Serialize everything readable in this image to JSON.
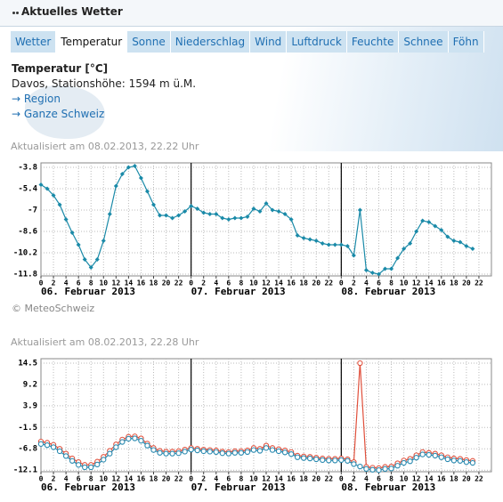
{
  "header": {
    "title": "Aktuelles Wetter"
  },
  "tabs": [
    "Wetter",
    "Temperatur",
    "Sonne",
    "Niederschlag",
    "Wind",
    "Luftdruck",
    "Feuchte",
    "Schnee",
    "Föhn"
  ],
  "active_tab": 1,
  "info": {
    "title": "Temperatur [°C]",
    "station": "Davos, Stationshöhe: 1594 m ü.M.",
    "links": [
      "Region",
      "Ganze Schweiz"
    ]
  },
  "credit": "© MeteoSchweiz",
  "chart_data": [
    {
      "type": "line",
      "subtitle": "Aktualisiert am 08.02.2013, 22.22 Uhr",
      "marker": "diamond",
      "grid": true,
      "x": [
        0,
        1,
        2,
        3,
        4,
        5,
        6,
        7,
        8,
        9,
        10,
        11,
        12,
        13,
        14,
        15,
        16,
        17,
        18,
        19,
        20,
        21,
        22,
        23,
        24,
        25,
        26,
        27,
        28,
        29,
        30,
        31,
        32,
        33,
        34,
        35,
        36,
        37,
        38,
        39,
        40,
        41,
        42,
        43,
        44,
        45,
        46,
        47,
        48,
        49,
        50,
        51,
        52,
        53,
        54,
        55,
        56,
        57,
        58,
        59,
        60,
        61,
        62,
        63,
        64,
        65,
        66,
        67,
        68,
        69
      ],
      "color": "#1a8aa8",
      "values": [
        -5.1,
        -5.4,
        -5.9,
        -6.6,
        -7.7,
        -8.7,
        -9.6,
        -10.7,
        -11.3,
        -10.7,
        -9.3,
        -7.3,
        -5.2,
        -4.3,
        -3.8,
        -3.7,
        -4.6,
        -5.6,
        -6.6,
        -7.4,
        -7.4,
        -7.6,
        -7.4,
        -7.1,
        -6.7,
        -6.9,
        -7.2,
        -7.3,
        -7.3,
        -7.6,
        -7.7,
        -7.6,
        -7.6,
        -7.5,
        -6.9,
        -7.1,
        -6.5,
        -7.0,
        -7.1,
        -7.3,
        -7.7,
        -8.9,
        -9.1,
        -9.2,
        -9.3,
        -9.5,
        -9.6,
        -9.6,
        -9.6,
        -9.7,
        -10.4,
        -7.0,
        -11.5,
        -11.7,
        -11.8,
        -11.4,
        -11.4,
        -10.6,
        -9.9,
        -9.5,
        -8.6,
        -7.8,
        -7.9,
        -8.2,
        -8.5,
        -9.0,
        -9.3,
        -9.4,
        -9.7,
        -9.9
      ],
      "xlim": [
        0,
        72
      ],
      "xticks": [
        0,
        2,
        4,
        6,
        8,
        10,
        12,
        14,
        16,
        18,
        20,
        22,
        {
          "value": 24,
          "label": "0"
        },
        {
          "value": 26,
          "label": "2"
        },
        {
          "value": 28,
          "label": "4"
        },
        {
          "value": 30,
          "label": "6"
        },
        {
          "value": 32,
          "label": "8"
        },
        {
          "value": 34,
          "label": "10"
        },
        {
          "value": 36,
          "label": "12"
        },
        {
          "value": 38,
          "label": "14"
        },
        {
          "value": 40,
          "label": "16"
        },
        {
          "value": 42,
          "label": "18"
        },
        {
          "value": 44,
          "label": "20"
        },
        {
          "value": 46,
          "label": "22"
        },
        {
          "value": 48,
          "label": "0"
        },
        {
          "value": 50,
          "label": "2"
        },
        {
          "value": 52,
          "label": "4"
        },
        {
          "value": 54,
          "label": "6"
        },
        {
          "value": 56,
          "label": "8"
        },
        {
          "value": 58,
          "label": "10"
        },
        {
          "value": 60,
          "label": "12"
        },
        {
          "value": 62,
          "label": "14"
        },
        {
          "value": 64,
          "label": "16"
        },
        {
          "value": 66,
          "label": "18"
        },
        {
          "value": 68,
          "label": "20"
        },
        {
          "value": 70,
          "label": "22"
        }
      ],
      "day_labels": [
        {
          "value": 0,
          "label": "06. Februar 2013"
        },
        {
          "value": 24,
          "label": "07. Februar 2013"
        },
        {
          "value": 48,
          "label": "08. Februar 2013"
        }
      ],
      "ylim": [
        -11.93,
        -3.47
      ],
      "yticks": [
        -3.8,
        -5.4,
        -7.0,
        -8.6,
        -10.2,
        -11.8
      ]
    },
    {
      "type": "line",
      "subtitle": "Aktualisiert am 08.02.2013, 22.28 Uhr",
      "marker": "circle",
      "grid": true,
      "x": [
        0,
        1,
        2,
        3,
        4,
        5,
        6,
        7,
        8,
        9,
        10,
        11,
        12,
        13,
        14,
        15,
        16,
        17,
        18,
        19,
        20,
        21,
        22,
        23,
        24,
        25,
        26,
        27,
        28,
        29,
        30,
        31,
        32,
        33,
        34,
        35,
        36,
        37,
        38,
        39,
        40,
        41,
        42,
        43,
        44,
        45,
        46,
        47,
        48,
        49,
        50,
        51,
        52,
        53,
        54,
        55,
        56,
        57,
        58,
        59,
        60,
        61,
        62,
        63,
        64,
        65,
        66,
        67,
        68,
        69
      ],
      "series": [
        {
          "color": "#e0503c",
          "values": [
            -5.0,
            -5.3,
            -5.8,
            -6.8,
            -8.0,
            -9.2,
            -10.1,
            -10.8,
            -10.8,
            -10.0,
            -8.8,
            -7.3,
            -5.7,
            -4.5,
            -3.8,
            -3.7,
            -4.2,
            -5.5,
            -6.6,
            -7.3,
            -7.5,
            -7.5,
            -7.4,
            -7.0,
            -6.6,
            -6.8,
            -7.0,
            -7.1,
            -7.2,
            -7.5,
            -7.6,
            -7.4,
            -7.4,
            -7.2,
            -6.6,
            -6.8,
            -6.0,
            -6.6,
            -6.9,
            -7.2,
            -7.6,
            -8.5,
            -8.7,
            -8.8,
            -9.0,
            -9.2,
            -9.3,
            -9.3,
            -9.2,
            -9.4,
            -10.1,
            14.5,
            -11.3,
            -11.5,
            -11.6,
            -11.3,
            -11.2,
            -10.4,
            -9.7,
            -9.3,
            -8.4,
            -7.6,
            -7.8,
            -8.0,
            -8.4,
            -8.9,
            -9.2,
            -9.3,
            -9.6,
            -9.8
          ]
        },
        {
          "color": "#2a8ab0",
          "values": [
            -5.6,
            -5.9,
            -6.4,
            -7.4,
            -8.6,
            -9.8,
            -10.8,
            -11.4,
            -11.4,
            -10.7,
            -9.5,
            -8.0,
            -6.4,
            -5.1,
            -4.3,
            -4.2,
            -4.8,
            -6.0,
            -7.1,
            -7.8,
            -8.0,
            -8.0,
            -7.9,
            -7.5,
            -7.0,
            -7.2,
            -7.4,
            -7.5,
            -7.6,
            -7.9,
            -8.0,
            -7.8,
            -7.8,
            -7.6,
            -7.1,
            -7.3,
            -6.6,
            -7.1,
            -7.4,
            -7.7,
            -8.1,
            -8.9,
            -9.1,
            -9.2,
            -9.4,
            -9.6,
            -9.7,
            -9.7,
            -9.6,
            -9.8,
            -10.6,
            -11.2,
            -11.8,
            -12.0,
            -12.1,
            -11.8,
            -11.7,
            -11.0,
            -10.3,
            -9.9,
            -9.0,
            -8.2,
            -8.3,
            -8.5,
            -8.9,
            -9.4,
            -9.7,
            -9.8,
            -10.1,
            -10.3
          ]
        }
      ],
      "xlim": [
        0,
        72
      ],
      "xticks": [
        0,
        2,
        4,
        6,
        8,
        10,
        12,
        14,
        16,
        18,
        20,
        22,
        {
          "value": 24,
          "label": "0"
        },
        {
          "value": 26,
          "label": "2"
        },
        {
          "value": 28,
          "label": "4"
        },
        {
          "value": 30,
          "label": "6"
        },
        {
          "value": 32,
          "label": "8"
        },
        {
          "value": 34,
          "label": "10"
        },
        {
          "value": 36,
          "label": "12"
        },
        {
          "value": 38,
          "label": "14"
        },
        {
          "value": 40,
          "label": "16"
        },
        {
          "value": 42,
          "label": "18"
        },
        {
          "value": 44,
          "label": "20"
        },
        {
          "value": 46,
          "label": "22"
        },
        {
          "value": 48,
          "label": "0"
        },
        {
          "value": 50,
          "label": "2"
        },
        {
          "value": 52,
          "label": "4"
        },
        {
          "value": 54,
          "label": "6"
        },
        {
          "value": 56,
          "label": "8"
        },
        {
          "value": 58,
          "label": "10"
        },
        {
          "value": 60,
          "label": "12"
        },
        {
          "value": 62,
          "label": "14"
        },
        {
          "value": 64,
          "label": "16"
        },
        {
          "value": 66,
          "label": "18"
        },
        {
          "value": 68,
          "label": "20"
        },
        {
          "value": 70,
          "label": "22"
        }
      ],
      "day_labels": [
        {
          "value": 0,
          "label": "06. Februar 2013"
        },
        {
          "value": 24,
          "label": "07. Februar 2013"
        },
        {
          "value": 48,
          "label": "08. Februar 2013"
        }
      ],
      "ylim": [
        -12.5,
        15.6
      ],
      "yticks": [
        14.5,
        9.2,
        3.9,
        -1.5,
        -6.8,
        -12.1
      ]
    }
  ]
}
